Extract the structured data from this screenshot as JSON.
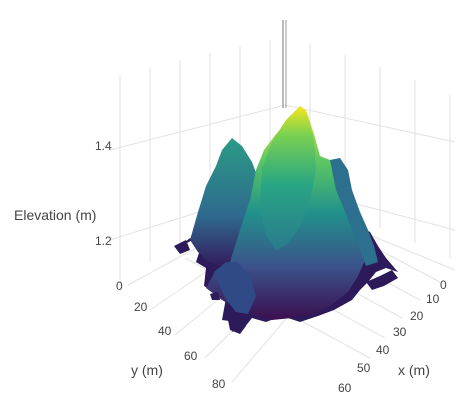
{
  "chart_data": {
    "type": "surface",
    "colorscale": "viridis",
    "colors": [
      "#440154",
      "#3b528b",
      "#21918c",
      "#5ec962",
      "#fde725"
    ],
    "axes": {
      "x": {
        "label": "x (m)",
        "ticks": [
          "10",
          "20",
          "30",
          "40",
          "50",
          "60"
        ]
      },
      "y": {
        "label": "y (m)",
        "ticks": [
          "20",
          "40",
          "60",
          "80"
        ]
      },
      "z": {
        "label": "Elevation (m)",
        "ticks": [
          "1.2",
          "1.4"
        ]
      }
    },
    "origin_label": "0",
    "peaks": [
      {
        "x": 18,
        "y": 62,
        "z": 1.56
      },
      {
        "x": 30,
        "y": 48,
        "z": 1.42
      },
      {
        "x": 25,
        "y": 72,
        "z": 1.4
      },
      {
        "x": 40,
        "y": 30,
        "z": 1.38
      }
    ],
    "grid": true
  }
}
